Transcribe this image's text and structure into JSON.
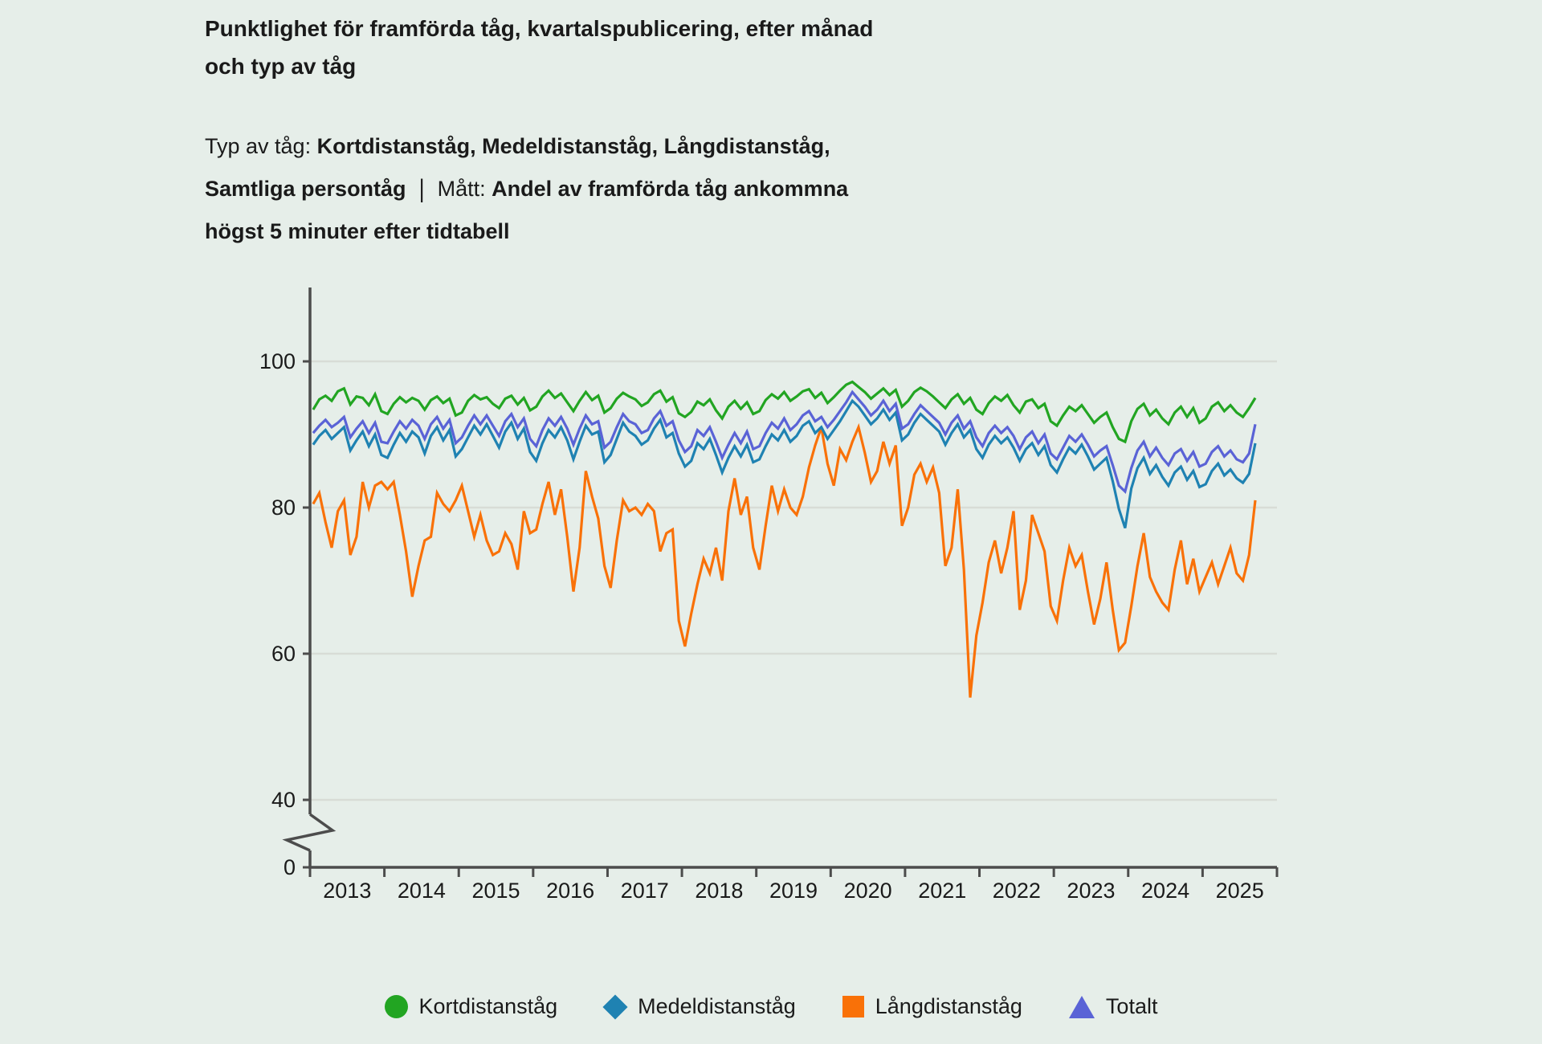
{
  "title": {
    "line1": "Punktlighet för framförda tåg, kvartalspublicering, efter månad",
    "line2": "och typ av tåg"
  },
  "subtitle": {
    "type_label": "Typ av tåg: ",
    "type_value_line1": "Kortdistanståg, Medeldistanståg, Långdistanståg,",
    "type_value_line2": "Samtliga persontåg",
    "separator": "|",
    "measure_label": "Mått: ",
    "measure_value_line1": "Andel av framförda tåg ankommna",
    "measure_value_line2": "högst 5 minuter efter tidtabell"
  },
  "colors": {
    "background": "#e6eee9",
    "gridline": "#d8dcd6",
    "axis": "#4c4c4c",
    "text": "#1a1a1a"
  },
  "chart_data": {
    "type": "line",
    "x_unit": "month",
    "x_start": "2013-01",
    "x_tick_labels": [
      "2013",
      "2014",
      "2015",
      "2016",
      "2017",
      "2018",
      "2019",
      "2020",
      "2021",
      "2022",
      "2023",
      "2024",
      "2025"
    ],
    "yticks": [
      100,
      80,
      60,
      40,
      0
    ],
    "ytick_labels": [
      "100",
      "80",
      "60",
      "40",
      "0"
    ],
    "y_axis_break": {
      "between": [
        0,
        40
      ]
    },
    "ylim": [
      0,
      110
    ],
    "grid": true,
    "legend_position": "bottom",
    "series": [
      {
        "name": "Kortdistanståg",
        "color": "#22a522",
        "marker": "circle",
        "values": [
          93.4,
          94.8,
          95.3,
          94.6,
          95.9,
          96.3,
          94.1,
          95.2,
          95.0,
          94.0,
          95.5,
          93.2,
          92.8,
          94.2,
          95.1,
          94.4,
          95.0,
          94.6,
          93.4,
          94.7,
          95.2,
          94.3,
          94.9,
          92.6,
          93.0,
          94.6,
          95.4,
          94.8,
          95.1,
          94.2,
          93.6,
          94.9,
          95.3,
          94.1,
          95.0,
          93.3,
          93.8,
          95.2,
          96.0,
          95.0,
          95.6,
          94.4,
          93.2,
          94.6,
          95.8,
          94.7,
          95.3,
          93.0,
          93.6,
          94.9,
          95.7,
          95.2,
          94.8,
          93.9,
          94.4,
          95.5,
          96.0,
          94.5,
          95.1,
          92.9,
          92.4,
          93.1,
          94.5,
          94.0,
          94.8,
          93.3,
          92.2,
          93.8,
          94.6,
          93.5,
          94.4,
          92.8,
          93.2,
          94.7,
          95.5,
          94.9,
          95.8,
          94.6,
          95.2,
          95.9,
          96.2,
          95.0,
          95.7,
          94.3,
          95.1,
          96.0,
          96.8,
          97.2,
          96.5,
          95.8,
          94.9,
          95.6,
          96.3,
          95.4,
          96.1,
          93.8,
          94.6,
          95.8,
          96.4,
          95.9,
          95.2,
          94.4,
          93.6,
          94.8,
          95.5,
          94.2,
          95.0,
          93.4,
          92.8,
          94.3,
          95.2,
          94.6,
          95.4,
          94.0,
          93.0,
          94.5,
          94.8,
          93.6,
          94.2,
          91.8,
          91.2,
          92.6,
          93.8,
          93.2,
          94.0,
          92.8,
          91.6,
          92.4,
          93.0,
          91.0,
          89.4,
          89.0,
          91.8,
          93.5,
          94.2,
          92.6,
          93.4,
          92.2,
          91.4,
          93.0,
          93.8,
          92.4,
          93.6,
          91.6,
          92.2,
          93.8,
          94.4,
          93.2,
          94.0,
          93.0,
          92.4,
          93.6,
          95.0
        ]
      },
      {
        "name": "Medeldistanståg",
        "color": "#1f82b2",
        "marker": "diamond",
        "values": [
          88.6,
          89.8,
          90.6,
          89.4,
          90.2,
          91.0,
          87.8,
          89.2,
          90.4,
          88.4,
          90.0,
          87.2,
          86.8,
          88.6,
          90.2,
          89.0,
          90.4,
          89.6,
          87.4,
          89.8,
          91.0,
          89.2,
          90.6,
          87.0,
          88.0,
          89.6,
          91.2,
          90.0,
          91.4,
          89.8,
          88.2,
          90.4,
          91.6,
          89.4,
          90.8,
          87.6,
          86.4,
          88.8,
          90.6,
          89.6,
          91.0,
          89.2,
          86.6,
          89.0,
          91.2,
          90.0,
          90.4,
          86.2,
          87.2,
          89.4,
          91.6,
          90.4,
          89.8,
          88.6,
          89.2,
          90.8,
          92.0,
          89.6,
          90.2,
          87.4,
          85.6,
          86.4,
          88.8,
          88.0,
          89.4,
          87.2,
          84.8,
          86.8,
          88.4,
          87.0,
          88.6,
          86.2,
          86.6,
          88.4,
          90.0,
          89.2,
          90.6,
          89.0,
          89.8,
          91.2,
          91.8,
          90.2,
          91.0,
          89.4,
          90.6,
          91.8,
          93.2,
          94.6,
          93.8,
          92.6,
          91.4,
          92.2,
          93.4,
          92.0,
          93.0,
          89.2,
          90.0,
          91.6,
          92.8,
          92.0,
          91.2,
          90.4,
          88.6,
          90.2,
          91.4,
          89.6,
          90.6,
          88.0,
          86.8,
          88.6,
          89.8,
          88.8,
          89.6,
          88.2,
          86.4,
          88.0,
          88.8,
          87.2,
          88.4,
          85.8,
          84.8,
          86.6,
          88.2,
          87.4,
          88.6,
          87.0,
          85.2,
          86.0,
          86.8,
          83.6,
          79.8,
          77.2,
          82.6,
          85.4,
          86.8,
          84.6,
          85.8,
          84.2,
          83.0,
          84.8,
          85.6,
          83.8,
          85.0,
          82.8,
          83.2,
          85.0,
          86.0,
          84.4,
          85.2,
          84.0,
          83.4,
          84.6,
          88.8
        ]
      },
      {
        "name": "Långdistanståg",
        "color": "#f97108",
        "marker": "square",
        "values": [
          80.5,
          82.0,
          78.0,
          74.5,
          79.5,
          81.0,
          73.5,
          76.0,
          83.5,
          80.0,
          83.0,
          83.5,
          82.5,
          83.5,
          79.0,
          74.0,
          67.8,
          72.0,
          75.5,
          76.0,
          82.0,
          80.5,
          79.5,
          81.0,
          83.0,
          79.5,
          76.0,
          79.0,
          75.5,
          73.5,
          74.0,
          76.5,
          75.0,
          71.5,
          79.5,
          76.5,
          77.0,
          80.5,
          83.5,
          79.0,
          82.5,
          76.0,
          68.5,
          74.5,
          85.0,
          81.5,
          78.5,
          72.0,
          69.0,
          75.5,
          81.0,
          79.5,
          80.0,
          79.0,
          80.5,
          79.5,
          74.0,
          76.5,
          77.0,
          64.5,
          61.0,
          65.5,
          69.5,
          73.0,
          71.0,
          74.5,
          70.0,
          79.5,
          84.0,
          79.0,
          81.5,
          74.5,
          71.5,
          77.5,
          83.0,
          79.5,
          82.5,
          80.0,
          79.0,
          81.5,
          85.5,
          88.5,
          91.0,
          86.0,
          83.0,
          88.0,
          86.5,
          89.0,
          91.0,
          87.5,
          83.5,
          85.0,
          89.0,
          86.0,
          88.5,
          77.5,
          80.0,
          84.5,
          86.0,
          83.5,
          85.5,
          82.0,
          72.0,
          74.5,
          82.5,
          71.5,
          54.0,
          62.5,
          67.0,
          72.5,
          75.5,
          71.0,
          74.5,
          79.5,
          66.0,
          70.0,
          79.0,
          76.5,
          74.0,
          66.5,
          64.5,
          70.0,
          74.5,
          72.0,
          73.5,
          68.5,
          64.0,
          67.5,
          72.5,
          66.0,
          60.5,
          61.5,
          66.5,
          72.0,
          76.5,
          70.5,
          68.5,
          67.0,
          66.0,
          71.5,
          75.5,
          69.5,
          73.0,
          68.5,
          70.5,
          72.5,
          69.5,
          72.0,
          74.5,
          71.0,
          70.0,
          73.5,
          81.0
        ]
      },
      {
        "name": "Totalt",
        "color": "#5a63d6",
        "marker": "triangle",
        "values": [
          90.2,
          91.2,
          92.0,
          91.0,
          91.6,
          92.4,
          89.6,
          90.8,
          91.8,
          90.2,
          91.6,
          89.0,
          88.8,
          90.4,
          91.8,
          90.8,
          92.0,
          91.2,
          89.4,
          91.4,
          92.4,
          90.8,
          92.0,
          88.8,
          89.6,
          91.2,
          92.6,
          91.4,
          92.6,
          91.2,
          89.8,
          91.8,
          92.8,
          91.0,
          92.2,
          89.4,
          88.4,
          90.6,
          92.2,
          91.2,
          92.4,
          90.8,
          88.6,
          90.8,
          92.6,
          91.4,
          91.8,
          88.2,
          89.0,
          91.0,
          92.8,
          91.8,
          91.4,
          90.2,
          90.6,
          92.2,
          93.2,
          91.2,
          91.8,
          89.2,
          87.6,
          88.4,
          90.6,
          89.8,
          91.0,
          89.0,
          86.8,
          88.6,
          90.2,
          88.8,
          90.4,
          88.0,
          88.4,
          90.2,
          91.6,
          90.8,
          92.2,
          90.6,
          91.4,
          92.6,
          93.2,
          91.8,
          92.4,
          91.0,
          92.0,
          93.2,
          94.4,
          95.8,
          94.8,
          93.8,
          92.6,
          93.4,
          94.6,
          93.2,
          94.2,
          90.8,
          91.4,
          92.8,
          94.0,
          93.2,
          92.4,
          91.6,
          90.0,
          91.6,
          92.6,
          90.8,
          91.8,
          89.6,
          88.4,
          90.2,
          91.2,
          90.2,
          91.0,
          89.8,
          88.0,
          89.6,
          90.4,
          88.8,
          90.0,
          87.4,
          86.6,
          88.2,
          89.8,
          89.0,
          90.0,
          88.6,
          87.0,
          87.8,
          88.4,
          85.8,
          83.0,
          82.2,
          85.4,
          87.8,
          89.0,
          87.0,
          88.2,
          86.8,
          85.8,
          87.4,
          88.0,
          86.4,
          87.6,
          85.6,
          86.0,
          87.6,
          88.4,
          87.0,
          87.8,
          86.6,
          86.2,
          87.4,
          91.4
        ]
      }
    ]
  },
  "legend": {
    "items": [
      "Kortdistanståg",
      "Medeldistanståg",
      "Långdistanståg",
      "Totalt"
    ]
  }
}
